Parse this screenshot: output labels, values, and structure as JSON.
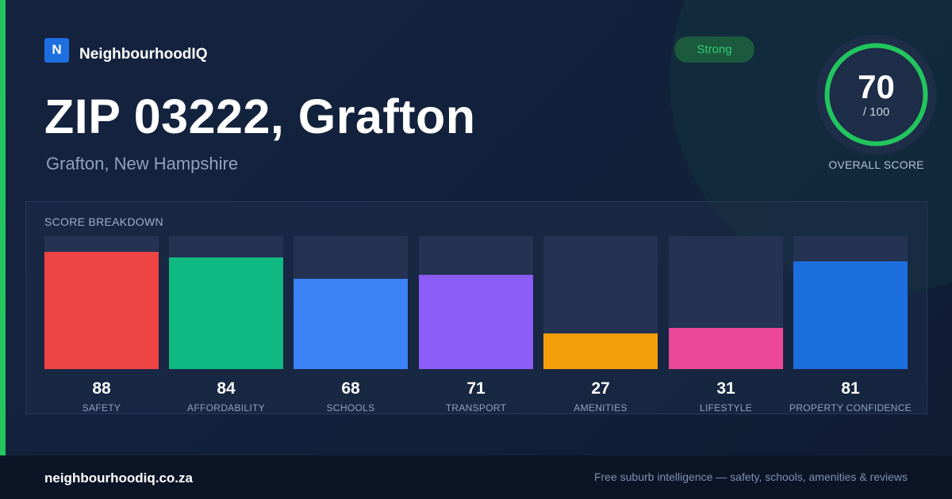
{
  "brand": {
    "logo_letter": "N",
    "name": "NeighbourhoodIQ"
  },
  "header": {
    "title": "ZIP 03222, Grafton",
    "subtitle": "Grafton, New Hampshire",
    "badge": "Strong"
  },
  "score": {
    "value": "70",
    "out_of": "/ 100",
    "label": "OVERALL SCORE",
    "fraction": 0.7
  },
  "breakdown": {
    "title": "SCORE BREAKDOWN",
    "bars": [
      {
        "label": "SAFETY",
        "value": "88",
        "color": "#ef4444"
      },
      {
        "label": "AFFORDABILITY",
        "value": "84",
        "color": "#10b981"
      },
      {
        "label": "SCHOOLS",
        "value": "68",
        "color": "#3b82f6"
      },
      {
        "label": "TRANSPORT",
        "value": "71",
        "color": "#8b5cf6"
      },
      {
        "label": "AMENITIES",
        "value": "27",
        "color": "#f59e0b"
      },
      {
        "label": "LIFESTYLE",
        "value": "31",
        "color": "#ec4899"
      },
      {
        "label": "PROPERTY CONFIDENCE",
        "value": "81",
        "color": "#1d6fe0"
      }
    ]
  },
  "footer": {
    "url": "neighbourhoodiq.co.za",
    "tagline": "Free suburb intelligence — safety, schools, amenities & reviews"
  },
  "colors": {
    "accent": "#22c55e",
    "brand": "#1d6fe0",
    "background": "#13203a"
  }
}
